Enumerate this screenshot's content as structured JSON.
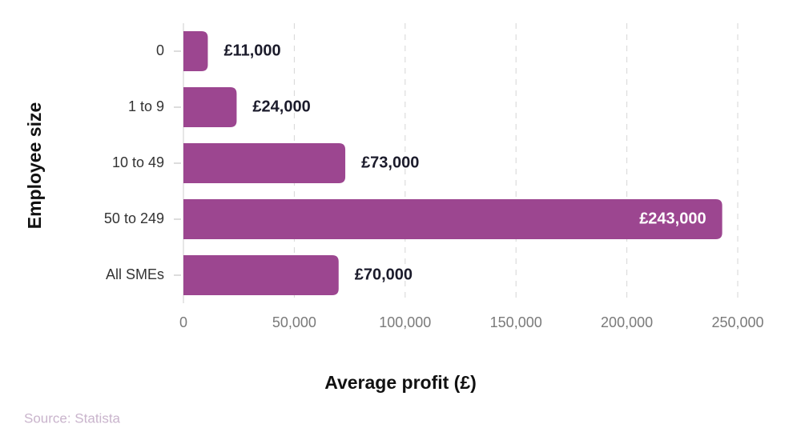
{
  "chart_data": {
    "type": "bar",
    "orientation": "horizontal",
    "categories": [
      "0",
      "1 to 9",
      "10 to 49",
      "50 to 249",
      "All SMEs"
    ],
    "values": [
      11000,
      24000,
      73000,
      243000,
      70000
    ],
    "value_labels": [
      "£11,000",
      "£24,000",
      "£73,000",
      "£243,000",
      "£70,000"
    ],
    "color": "#9c4690",
    "xlim": [
      0,
      250000
    ],
    "xticks": [
      0,
      {
        "value": 50000,
        "label": "50,000"
      },
      {
        "value": 100000,
        "label": "100,000"
      },
      {
        "value": 150000,
        "label": "150,000"
      },
      {
        "value": 200000,
        "label": "200,000"
      },
      {
        "value": 250000,
        "label": "250,000"
      }
    ],
    "grid": true,
    "xlabel": "Average profit (£)",
    "ylabel": "Employee size",
    "source": "Source: Statista"
  }
}
